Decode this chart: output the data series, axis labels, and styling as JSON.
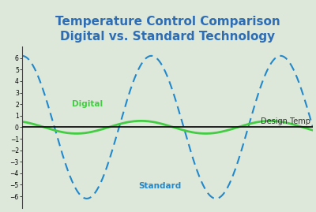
{
  "title_line1": "Temperature Control Comparison",
  "title_line2": "Digital vs. Standard Technology",
  "title_color": "#2e6db4",
  "background_color": "#dde8da",
  "ylim": [
    -7,
    7
  ],
  "yticks": [
    -6,
    -5,
    -4,
    -3,
    -2,
    -1,
    0,
    1,
    2,
    3,
    4,
    5,
    6
  ],
  "standard_amplitude": 6.2,
  "digital_amplitude": 0.55,
  "standard_color": "#2288cc",
  "digital_color": "#44cc44",
  "design_temp_color": "#111111",
  "label_digital": "Digital",
  "label_standard": "Standard",
  "label_design": "Design Temp",
  "title_fontsize": 11,
  "axis_label_fontsize": 7.5,
  "annot_fontsize": 7.5
}
